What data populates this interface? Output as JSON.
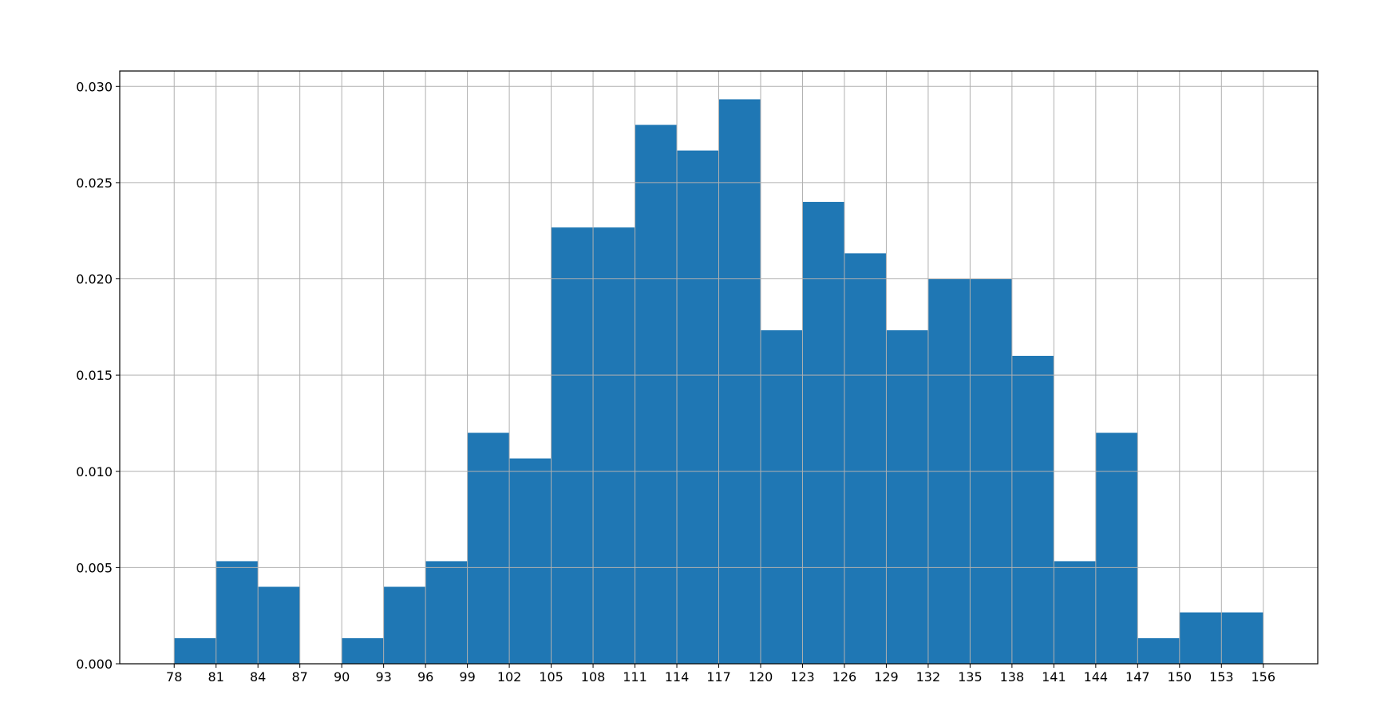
{
  "chart_data": {
    "type": "histogram",
    "bins": [
      78,
      81,
      84,
      87,
      90,
      93,
      96,
      99,
      102,
      105,
      108,
      111,
      114,
      117,
      120,
      123,
      126,
      129,
      132,
      135,
      138,
      141,
      144,
      147,
      150,
      153,
      156
    ],
    "values": [
      0.00133,
      0.00533,
      0.004,
      0,
      0.00133,
      0.004,
      0.00533,
      0.012,
      0.01067,
      0.02267,
      0.02267,
      0.028,
      0.02667,
      0.02933,
      0.01733,
      0.024,
      0.02133,
      0.01733,
      0.02,
      0.02,
      0.016,
      0.00533,
      0.012,
      0.00133,
      0.00267,
      0.00267
    ],
    "color": "#1f77b4",
    "xlim": [
      74.1,
      159.9
    ],
    "ylim": [
      0,
      0.0308
    ],
    "xticks": [
      78,
      81,
      84,
      87,
      90,
      93,
      96,
      99,
      102,
      105,
      108,
      111,
      114,
      117,
      120,
      123,
      126,
      129,
      132,
      135,
      138,
      141,
      144,
      147,
      150,
      153,
      156
    ],
    "yticks": [
      {
        "value": 0,
        "label": "0.000"
      },
      {
        "value": 0.005,
        "label": "0.005"
      },
      {
        "value": 0.01,
        "label": "0.010"
      },
      {
        "value": 0.015,
        "label": "0.015"
      },
      {
        "value": 0.02,
        "label": "0.020"
      },
      {
        "value": 0.025,
        "label": "0.025"
      },
      {
        "value": 0.03,
        "label": "0.030"
      }
    ],
    "grid": true
  }
}
